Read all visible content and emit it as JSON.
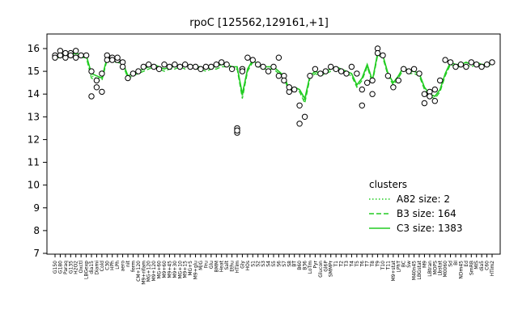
{
  "chart_data": {
    "type": "line",
    "title": "rpoC [125562,129161,+1]",
    "xlabel": "",
    "ylabel": "",
    "ylim": [
      7,
      16
    ],
    "yticks": [
      7,
      8,
      9,
      10,
      11,
      12,
      13,
      14,
      15,
      16
    ],
    "grid": false,
    "legend": {
      "title": "clusters",
      "placement": "bottom-right",
      "entries": [
        {
          "label": "A82 size: 2",
          "style": "dotted"
        },
        {
          "label": "B3 size: 164",
          "style": "dashed"
        },
        {
          "label": "C3 size: 1383",
          "style": "solid"
        }
      ]
    },
    "xtick_labels": [
      "G150",
      "G180",
      "Paraq",
      "G135",
      "H2O2",
      "Oxctl",
      "LBGexp",
      "dia15",
      "Diami",
      "Cold",
      "C30",
      "HPh",
      "LPh",
      "aero",
      "nit",
      "ferm",
      "CM+120",
      "M9+rifam",
      "MG+120",
      "M9+120",
      "MG+60",
      "M9+60",
      "M9+45",
      "M9+30",
      "MG+10",
      "M9+15",
      "MG+5",
      "M9+glu",
      "M/G",
      "Fru",
      "Glu",
      "BMM",
      "Heat",
      "Salt",
      "Ethu",
      "HTim",
      "Gly",
      "HOs",
      "S1",
      "S2",
      "S3",
      "S4",
      "S5",
      "S6",
      "S7",
      "S8",
      "BT",
      "B60",
      "B36",
      "LoTm",
      "Pyr",
      "Glucon",
      "Gl6P",
      "SMMPr",
      "T1",
      "T2",
      "T3",
      "T4",
      "T5",
      "T6",
      "T7",
      "T8",
      "T9",
      "T10",
      "T11",
      "M9+stat",
      "LPhT",
      "BC",
      "Sw",
      "M40n45",
      "LBGstat",
      "M9",
      "LBtran",
      "MOPS",
      "Lbstat",
      "M0060",
      "Sd",
      "BI",
      "NDm45",
      "Ed",
      "SmRB",
      "MIS",
      "dia5",
      "C60",
      "HTim2"
    ],
    "series": [
      {
        "name": "C3 size: 1383",
        "style": "solid",
        "x": [
          1,
          2,
          3,
          4,
          5,
          6,
          7,
          8,
          9,
          10,
          11,
          12,
          13,
          14,
          15,
          16,
          17,
          18,
          19,
          20,
          21,
          22,
          23,
          24,
          25,
          26,
          27,
          28,
          29,
          30,
          31,
          32,
          33,
          34,
          35,
          36,
          37,
          38,
          39,
          40,
          41,
          42,
          43,
          44,
          45,
          46,
          47,
          48,
          49,
          50,
          51,
          52,
          53,
          54,
          55,
          56,
          57,
          58,
          59,
          60,
          61,
          62,
          63,
          64,
          65,
          66,
          67,
          68,
          69,
          70,
          71,
          72,
          73,
          74,
          75,
          76,
          77,
          78,
          79,
          80,
          81,
          82,
          83,
          84,
          85
        ],
        "y": [
          15.7,
          15.7,
          15.8,
          15.7,
          15.8,
          15.7,
          15.7,
          14.9,
          14.8,
          14.7,
          15.6,
          15.5,
          15.5,
          15.4,
          14.8,
          14.9,
          15.0,
          15.1,
          15.2,
          15.3,
          15.2,
          15.1,
          15.2,
          15.2,
          15.3,
          15.2,
          15.3,
          15.2,
          15.2,
          15.1,
          15.2,
          15.2,
          15.3,
          15.3,
          15.2,
          15.2,
          14.0,
          15.1,
          15.5,
          15.3,
          15.2,
          15.2,
          15.2,
          15.0,
          14.8,
          14.2,
          14.3,
          14.2,
          13.8,
          14.8,
          15.0,
          14.9,
          15.0,
          15.1,
          15.2,
          15.1,
          15.0,
          14.9,
          14.4,
          14.7,
          15.3,
          14.6,
          15.8,
          15.7,
          14.9,
          14.5,
          14.8,
          15.2,
          15.0,
          15.0,
          14.9,
          14.3,
          14.0,
          13.9,
          14.2,
          14.9,
          15.4,
          15.3,
          15.3,
          15.4,
          15.3,
          15.4,
          15.3,
          15.3,
          15.4
        ]
      },
      {
        "name": "B3 size: 164",
        "style": "dashed",
        "x": [
          1,
          2,
          3,
          4,
          5,
          6,
          7,
          8,
          9,
          10,
          11,
          12,
          13,
          14,
          15,
          16,
          17,
          18,
          19,
          20,
          21,
          22,
          23,
          24,
          25,
          26,
          27,
          28,
          29,
          30,
          31,
          32,
          33,
          34,
          35,
          36,
          37,
          38,
          39,
          40,
          41,
          42,
          43,
          44,
          45,
          46,
          47,
          48,
          49,
          50,
          51,
          52,
          53,
          54,
          55,
          56,
          57,
          58,
          59,
          60,
          61,
          62,
          63,
          64,
          65,
          66,
          67,
          68,
          69,
          70,
          71,
          72,
          73,
          74,
          75,
          76,
          77,
          78,
          79,
          80,
          81,
          82,
          83,
          84,
          85
        ],
        "y": [
          15.6,
          15.6,
          15.7,
          15.6,
          15.7,
          15.6,
          15.6,
          14.7,
          14.6,
          14.6,
          15.5,
          15.4,
          15.4,
          15.3,
          14.7,
          14.8,
          14.9,
          15.0,
          15.1,
          15.2,
          15.1,
          15.0,
          15.1,
          15.1,
          15.2,
          15.1,
          15.2,
          15.1,
          15.1,
          15.0,
          15.1,
          15.1,
          15.2,
          15.2,
          15.1,
          15.1,
          13.8,
          15.0,
          15.4,
          15.2,
          15.1,
          15.1,
          15.1,
          14.9,
          14.7,
          14.1,
          14.2,
          14.1,
          13.6,
          14.7,
          14.9,
          14.8,
          14.9,
          15.0,
          15.1,
          15.0,
          14.9,
          14.8,
          14.3,
          14.6,
          15.2,
          14.5,
          15.7,
          15.6,
          14.8,
          14.4,
          14.7,
          15.1,
          14.9,
          14.9,
          14.8,
          14.2,
          13.9,
          13.8,
          14.1,
          14.8,
          15.3,
          15.2,
          15.2,
          15.3,
          15.2,
          15.3,
          15.2,
          15.2,
          15.3
        ]
      },
      {
        "name": "A82 size: 2",
        "style": "dotted",
        "x": [
          1,
          2,
          3,
          4,
          5,
          6,
          7,
          8,
          9,
          10,
          11,
          12,
          13,
          14,
          15,
          16,
          17,
          18,
          19,
          20,
          21,
          22,
          23,
          24,
          25,
          26,
          27,
          28,
          29,
          30,
          31,
          32,
          33,
          34,
          35,
          36,
          37,
          38,
          39,
          40,
          41,
          42,
          43,
          44,
          45,
          46,
          47,
          48,
          49,
          50,
          51,
          52,
          53,
          54,
          55,
          56,
          57,
          58,
          59,
          60,
          61,
          62,
          63,
          64,
          65,
          66,
          67,
          68,
          69,
          70,
          71,
          72,
          73,
          74,
          75,
          76,
          77,
          78,
          79,
          80,
          81,
          82,
          83,
          84,
          85
        ],
        "y": [
          15.7,
          15.7,
          15.8,
          15.7,
          15.8,
          15.7,
          15.7,
          14.8,
          14.7,
          14.7,
          15.6,
          15.5,
          15.5,
          15.4,
          14.8,
          14.9,
          15.0,
          15.1,
          15.2,
          15.3,
          15.2,
          15.1,
          15.2,
          15.2,
          15.3,
          15.2,
          15.3,
          15.2,
          15.2,
          15.1,
          15.2,
          15.2,
          15.3,
          15.3,
          15.2,
          15.2,
          13.9,
          15.1,
          15.5,
          15.3,
          15.2,
          15.2,
          15.2,
          15.0,
          14.8,
          14.2,
          14.3,
          14.2,
          13.7,
          14.8,
          15.0,
          14.9,
          15.0,
          15.1,
          15.2,
          15.1,
          15.0,
          14.9,
          14.4,
          14.7,
          15.3,
          14.6,
          15.8,
          15.7,
          14.9,
          14.5,
          14.8,
          15.2,
          15.0,
          15.0,
          14.9,
          14.3,
          14.0,
          13.9,
          14.2,
          14.9,
          15.4,
          15.3,
          15.3,
          15.4,
          15.3,
          15.4,
          15.3,
          15.3,
          15.4
        ]
      }
    ],
    "points": {
      "x": [
        1,
        1,
        2,
        2,
        3,
        3,
        4,
        4,
        5,
        5,
        6,
        7,
        8,
        8,
        9,
        9,
        10,
        10,
        11,
        11,
        12,
        12,
        13,
        13,
        14,
        14,
        15,
        16,
        17,
        18,
        19,
        20,
        21,
        22,
        23,
        24,
        25,
        26,
        27,
        28,
        29,
        30,
        31,
        32,
        33,
        34,
        35,
        36,
        36,
        36,
        37,
        37,
        38,
        39,
        40,
        41,
        42,
        43,
        44,
        44,
        45,
        45,
        46,
        46,
        47,
        48,
        48,
        49,
        50,
        51,
        52,
        53,
        54,
        55,
        56,
        57,
        58,
        59,
        60,
        60,
        61,
        62,
        62,
        63,
        63,
        64,
        65,
        66,
        67,
        68,
        69,
        70,
        71,
        72,
        72,
        73,
        73,
        74,
        74,
        75,
        76,
        77,
        78,
        79,
        80,
        81,
        82,
        83,
        84,
        85
      ],
      "y": [
        15.7,
        15.6,
        15.9,
        15.7,
        15.6,
        15.8,
        15.8,
        15.7,
        15.9,
        15.6,
        15.7,
        15.7,
        13.9,
        15.0,
        14.6,
        14.3,
        14.1,
        14.9,
        15.7,
        15.5,
        15.6,
        15.5,
        15.5,
        15.6,
        15.4,
        15.2,
        14.7,
        14.9,
        15.0,
        15.2,
        15.3,
        15.2,
        15.1,
        15.3,
        15.2,
        15.3,
        15.2,
        15.3,
        15.2,
        15.2,
        15.1,
        15.2,
        15.2,
        15.3,
        15.4,
        15.3,
        15.1,
        12.5,
        12.3,
        12.4,
        15.1,
        15.0,
        15.6,
        15.5,
        15.3,
        15.2,
        15.0,
        15.2,
        14.8,
        15.6,
        14.8,
        14.6,
        14.1,
        14.3,
        14.2,
        13.5,
        12.7,
        13.0,
        14.8,
        15.1,
        14.9,
        15.0,
        15.2,
        15.1,
        15.0,
        14.9,
        15.2,
        14.9,
        13.5,
        14.2,
        14.5,
        14.0,
        14.6,
        16.0,
        15.8,
        15.7,
        14.8,
        14.3,
        14.6,
        15.1,
        15.0,
        15.1,
        14.9,
        14.0,
        13.6,
        14.1,
        13.9,
        13.7,
        14.2,
        14.6,
        15.5,
        15.4,
        15.2,
        15.3,
        15.2,
        15.4,
        15.3,
        15.2,
        15.3,
        15.4
      ]
    }
  }
}
